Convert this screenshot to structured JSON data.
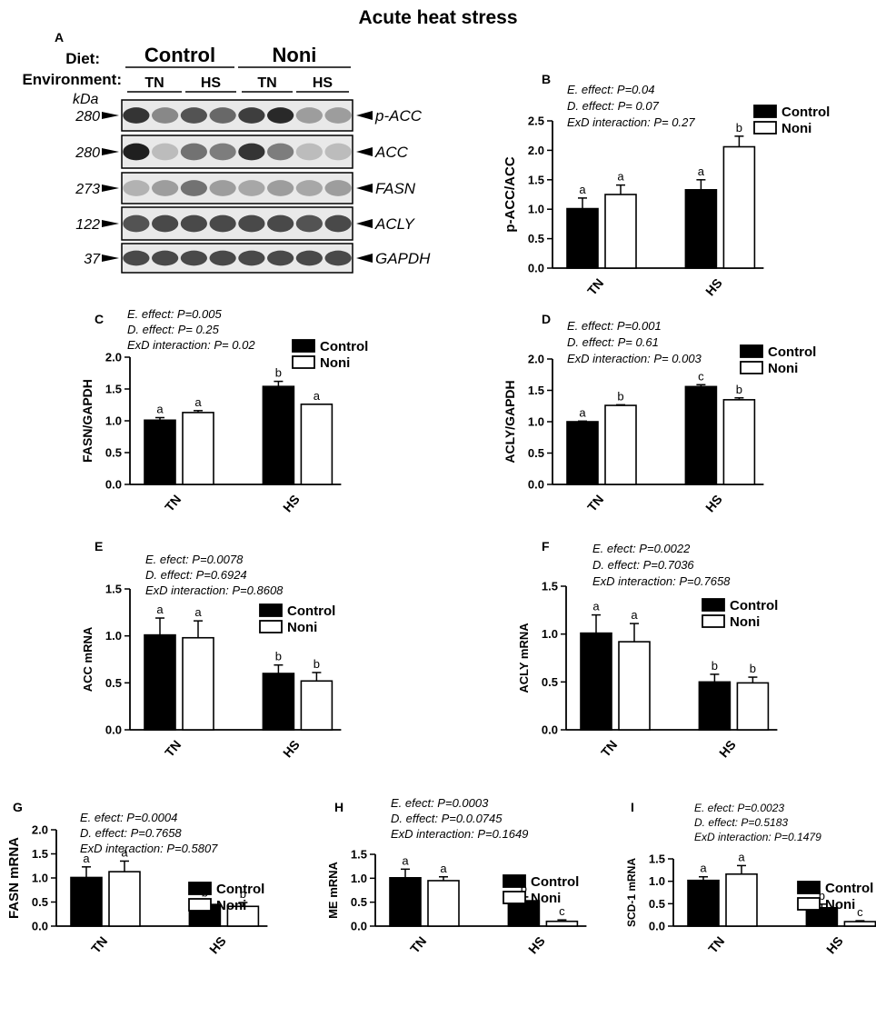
{
  "figure_title": "Acute heat stress",
  "colors": {
    "control": "#000000",
    "noni": "#ffffff",
    "axis": "#000000"
  },
  "western_blot": {
    "panel_label": "A",
    "diet_label": "Diet:",
    "environment_label": "Environment:",
    "diets": [
      "Control",
      "Noni"
    ],
    "environments": [
      "TN",
      "HS",
      "TN",
      "HS"
    ],
    "kda_label": "kDa",
    "bands": [
      {
        "name": "p-ACC",
        "kda": "280"
      },
      {
        "name": "ACC",
        "kda": "280"
      },
      {
        "name": "FASN",
        "kda": "273"
      },
      {
        "name": "ACLY",
        "kda": "122"
      },
      {
        "name": "GAPDH",
        "kda": "37"
      }
    ]
  },
  "chart_data": [
    {
      "panel": "B",
      "type": "bar",
      "categories": [
        "TN",
        "HS"
      ],
      "ylabel": "p-ACC/ACC",
      "ylim": [
        0,
        2.5
      ],
      "yticks": [
        "0.0",
        "0.5",
        "1.0",
        "1.5",
        "2.0",
        "2.5"
      ],
      "stats": [
        "E. effect: P=0.04",
        "D. effect: P= 0.07",
        "ExD interaction: P= 0.27"
      ],
      "series": [
        {
          "name": "Control",
          "values": [
            1.01,
            1.33
          ],
          "errors": [
            0.18,
            0.17
          ],
          "letters": [
            "a",
            "a"
          ]
        },
        {
          "name": "Noni",
          "values": [
            1.25,
            2.06
          ],
          "errors": [
            0.16,
            0.18
          ],
          "letters": [
            "a",
            "b"
          ]
        }
      ]
    },
    {
      "panel": "C",
      "type": "bar",
      "categories": [
        "TN",
        "HS"
      ],
      "ylabel": "FASN/GAPDH",
      "ylim": [
        0,
        2.0
      ],
      "yticks": [
        "0.0",
        "0.5",
        "1.0",
        "1.5",
        "2.0"
      ],
      "stats": [
        "E. effect: P=0.005",
        "D. effect: P= 0.25",
        "ExD interaction: P= 0.02"
      ],
      "series": [
        {
          "name": "Control",
          "values": [
            1.01,
            1.54
          ],
          "errors": [
            0.04,
            0.08
          ],
          "letters": [
            "a",
            "b"
          ]
        },
        {
          "name": "Noni",
          "values": [
            1.13,
            1.26
          ],
          "errors": [
            0.03,
            0.0
          ],
          "letters": [
            "a",
            "a"
          ]
        }
      ]
    },
    {
      "panel": "D",
      "type": "bar",
      "categories": [
        "TN",
        "HS"
      ],
      "ylabel": "ACLY/GAPDH",
      "ylim": [
        0,
        2.0
      ],
      "yticks": [
        "0.0",
        "0.5",
        "1.0",
        "1.5",
        "2.0"
      ],
      "stats": [
        "E. effect: P=0.001",
        "D. effect: P= 0.61",
        "ExD interaction: P= 0.003"
      ],
      "series": [
        {
          "name": "Control",
          "values": [
            1.0,
            1.56
          ],
          "errors": [
            0.01,
            0.03
          ],
          "letters": [
            "a",
            "c"
          ]
        },
        {
          "name": "Noni",
          "values": [
            1.26,
            1.35
          ],
          "errors": [
            0.01,
            0.03
          ],
          "letters": [
            "b",
            "b"
          ]
        }
      ]
    },
    {
      "panel": "E",
      "type": "bar",
      "categories": [
        "TN",
        "HS"
      ],
      "ylabel": "ACC mRNA",
      "ylim": [
        0,
        1.5
      ],
      "yticks": [
        "0.0",
        "0.5",
        "1.0",
        "1.5"
      ],
      "stats": [
        "E. efect: P=0.0078",
        "D. effect: P=0.6924",
        "ExD interaction: P=0.8608"
      ],
      "series": [
        {
          "name": "Control",
          "values": [
            1.01,
            0.6
          ],
          "errors": [
            0.18,
            0.09
          ],
          "letters": [
            "a",
            "b"
          ]
        },
        {
          "name": "Noni",
          "values": [
            0.98,
            0.52
          ],
          "errors": [
            0.18,
            0.09
          ],
          "letters": [
            "a",
            "b"
          ]
        }
      ]
    },
    {
      "panel": "F",
      "type": "bar",
      "categories": [
        "TN",
        "HS"
      ],
      "ylabel": "ACLY mRNA",
      "ylim": [
        0,
        1.5
      ],
      "yticks": [
        "0.0",
        "0.5",
        "1.0",
        "1.5"
      ],
      "stats": [
        "E. efect: P=0.0022",
        "D. effect: P=0.7036",
        "ExD interaction: P=0.7658"
      ],
      "series": [
        {
          "name": "Control",
          "values": [
            1.01,
            0.5
          ],
          "errors": [
            0.19,
            0.08
          ],
          "letters": [
            "a",
            "b"
          ]
        },
        {
          "name": "Noni",
          "values": [
            0.92,
            0.49
          ],
          "errors": [
            0.19,
            0.06
          ],
          "letters": [
            "a",
            "b"
          ]
        }
      ]
    },
    {
      "panel": "G",
      "type": "bar",
      "categories": [
        "TN",
        "HS"
      ],
      "ylabel": "FASN mRNA",
      "ylim": [
        0,
        2.0
      ],
      "yticks": [
        "0.0",
        "0.5",
        "1.0",
        "1.5",
        "2.0"
      ],
      "stats": [
        "E. efect: P=0.0004",
        "D. effect: P=0.7658",
        "ExD interaction: P=0.5807"
      ],
      "series": [
        {
          "name": "Control",
          "values": [
            1.01,
            0.45
          ],
          "errors": [
            0.22,
            0.07
          ],
          "letters": [
            "a",
            "b"
          ]
        },
        {
          "name": "Noni",
          "values": [
            1.13,
            0.41
          ],
          "errors": [
            0.22,
            0.08
          ],
          "letters": [
            "a",
            "b"
          ]
        }
      ]
    },
    {
      "panel": "H",
      "type": "bar",
      "categories": [
        "TN",
        "HS"
      ],
      "ylabel": "ME mRNA",
      "ylim": [
        0,
        1.5
      ],
      "yticks": [
        "0.0",
        "0.5",
        "1.0",
        "1.5"
      ],
      "stats": [
        "E. efect: P=0.0003",
        "D. effect: P=0.0.0745",
        "ExD interaction: P=0.1649"
      ],
      "series": [
        {
          "name": "Control",
          "values": [
            1.01,
            0.53
          ],
          "errors": [
            0.18,
            0.08
          ],
          "letters": [
            "a",
            "b"
          ]
        },
        {
          "name": "Noni",
          "values": [
            0.95,
            0.1
          ],
          "errors": [
            0.08,
            0.03
          ],
          "letters": [
            "a",
            "c"
          ]
        }
      ]
    },
    {
      "panel": "I",
      "type": "bar",
      "categories": [
        "TN",
        "HS"
      ],
      "ylabel": "SCD-1 mRNA",
      "ylim": [
        0,
        1.5
      ],
      "yticks": [
        "0.0",
        "0.5",
        "1.0",
        "1.5"
      ],
      "stats": [
        "E. efect: P=0.0023",
        "D. effect: P=0.5183",
        "ExD interaction: P=0.1479"
      ],
      "series": [
        {
          "name": "Control",
          "values": [
            1.02,
            0.41
          ],
          "errors": [
            0.08,
            0.08
          ],
          "letters": [
            "a",
            "b"
          ]
        },
        {
          "name": "Noni",
          "values": [
            1.16,
            0.1
          ],
          "errors": [
            0.19,
            0.02
          ],
          "letters": [
            "a",
            "c"
          ]
        }
      ]
    }
  ]
}
